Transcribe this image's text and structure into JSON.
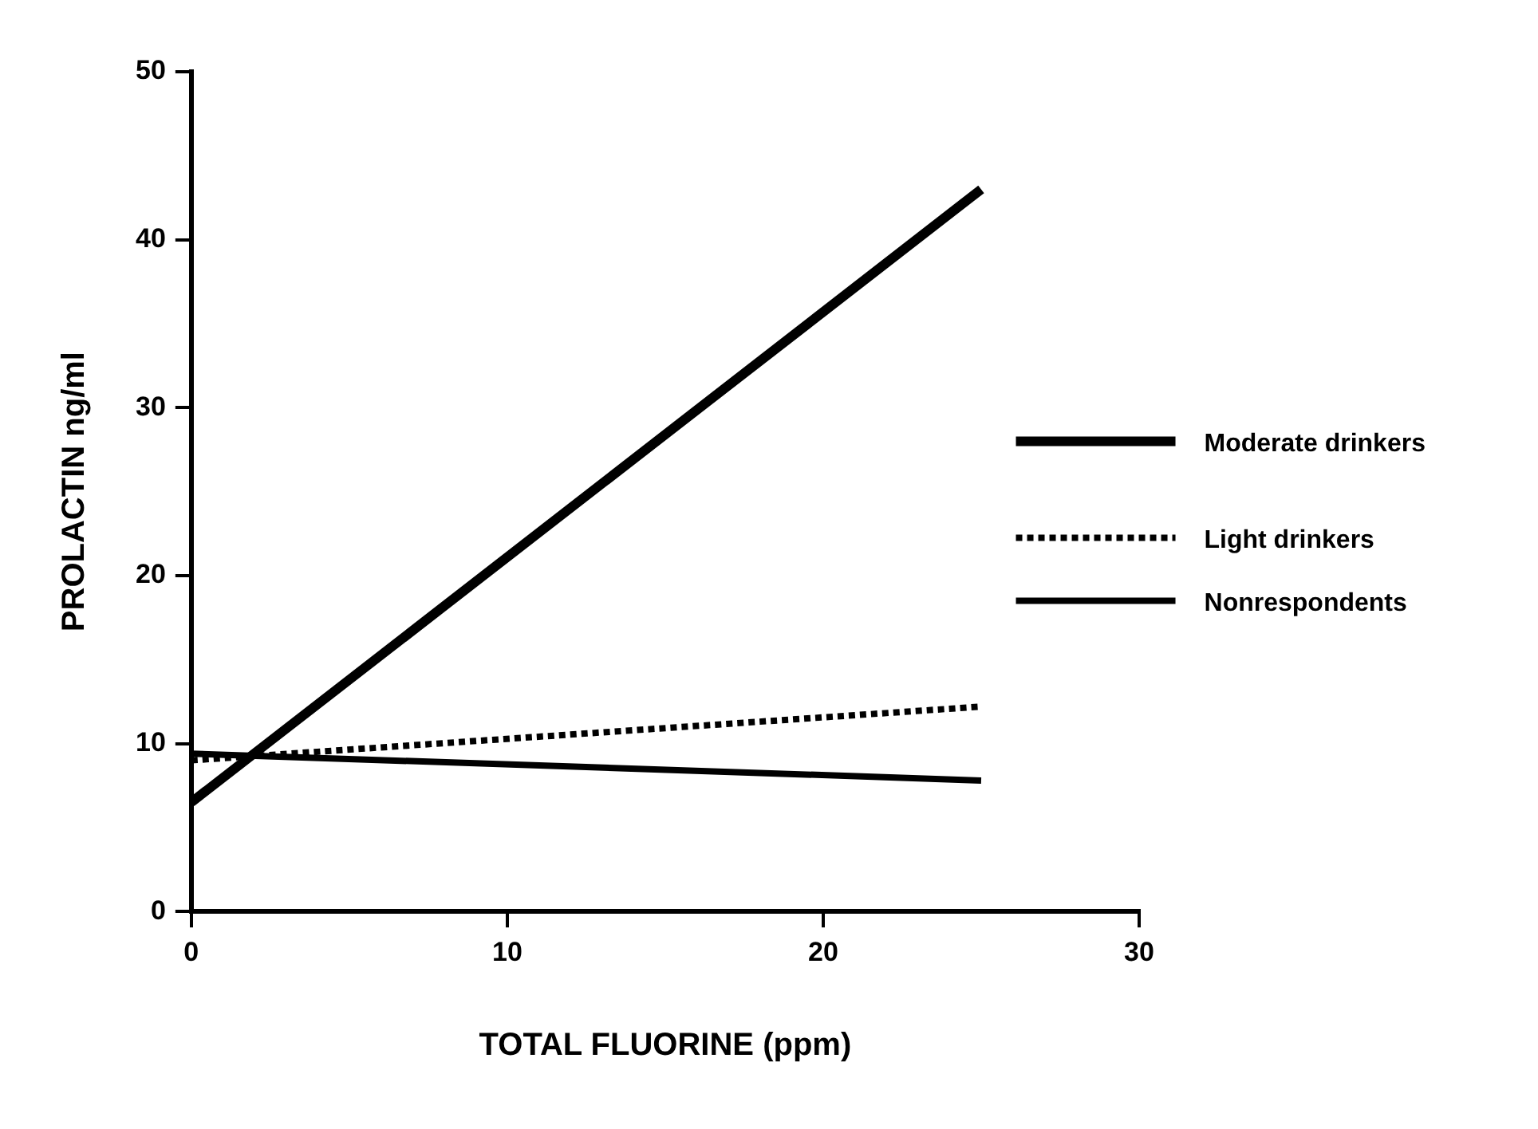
{
  "chart_data": {
    "type": "line",
    "xlabel": "TOTAL FLUORINE (ppm)",
    "ylabel": "PROLACTIN ng/ml",
    "x": [
      0,
      25
    ],
    "series": [
      {
        "name": "Moderate drinkers",
        "color": "#000000",
        "values": [
          6.5,
          43
        ],
        "line_style": "solid"
      },
      {
        "name": "Light drinkers",
        "color": "#000000",
        "values": [
          9,
          12.2
        ],
        "line_style": "dotted"
      },
      {
        "name": "Nonrespondents",
        "color": "#000000",
        "values": [
          9.4,
          7.8
        ],
        "line_style": "solid"
      }
    ],
    "xlim": [
      0,
      30
    ],
    "xticks": [
      0,
      10,
      20,
      30
    ],
    "ylim": [
      0,
      50
    ],
    "yticks": [
      0,
      10,
      20,
      30,
      40,
      50
    ],
    "grid": false,
    "legend": "right",
    "marker": "none"
  }
}
